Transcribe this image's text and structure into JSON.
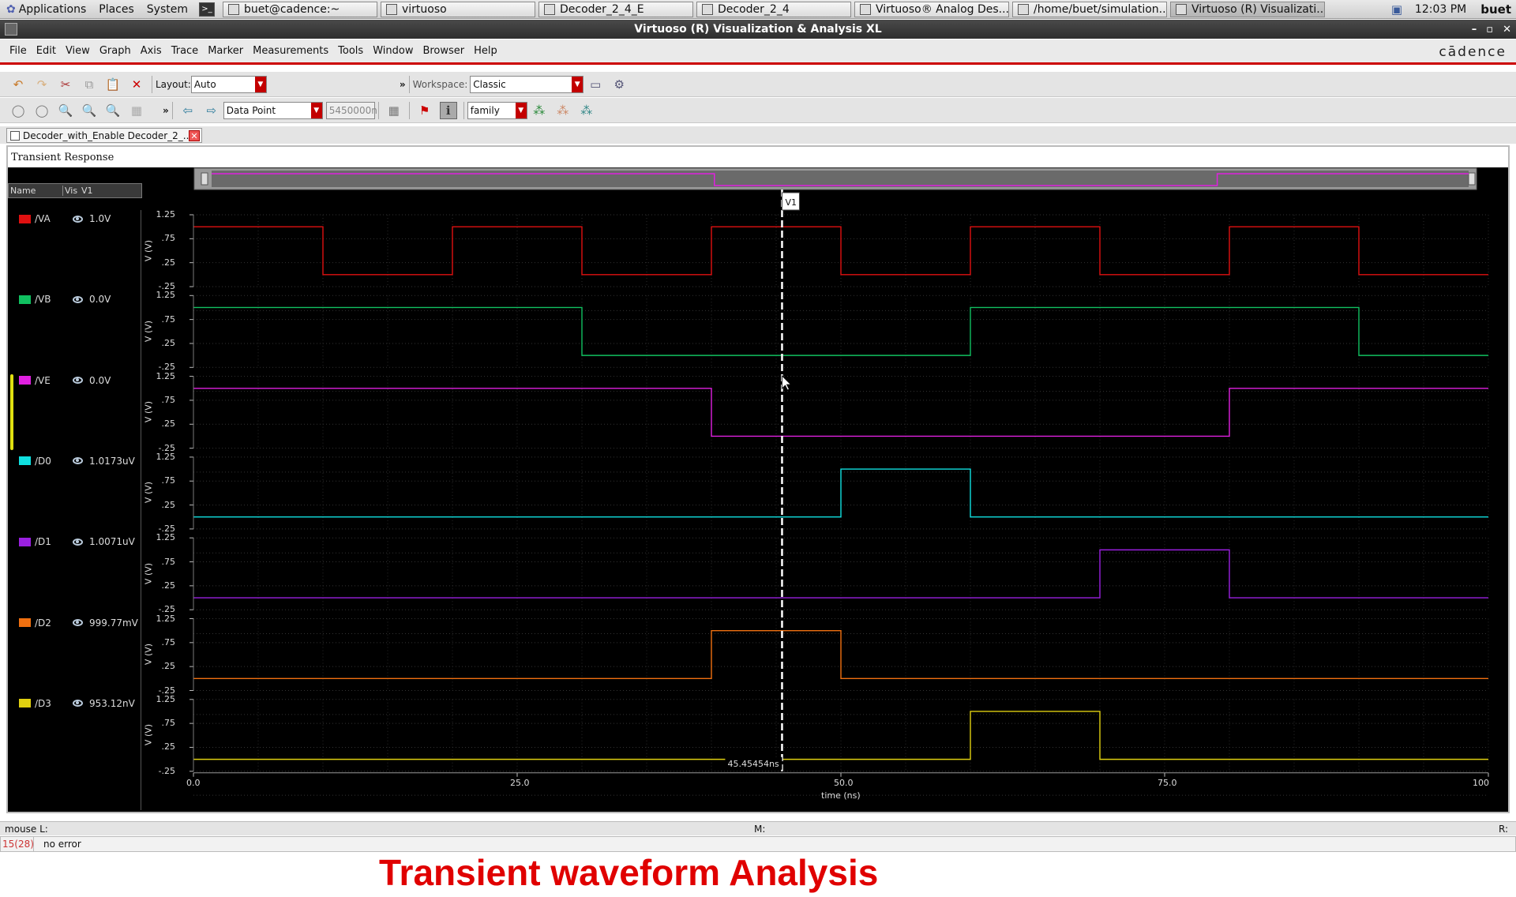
{
  "system_panel": {
    "menus": [
      "Applications",
      "Places",
      "System"
    ],
    "tasks": [
      {
        "label": "buet@cadence:~",
        "active": false
      },
      {
        "label": "virtuoso",
        "active": false
      },
      {
        "label": "Decoder_2_4_E",
        "active": false
      },
      {
        "label": "Decoder_2_4",
        "active": false
      },
      {
        "label": "Virtuoso® Analog Des...",
        "active": false
      },
      {
        "label": "/home/buet/simulation...",
        "active": false
      },
      {
        "label": "Virtuoso (R) Visualizati...",
        "active": true
      }
    ],
    "clock": "12:03 PM",
    "user": "buet"
  },
  "window": {
    "title": "Virtuoso (R) Visualization & Analysis XL",
    "controls": [
      "–",
      "▫",
      "✕"
    ]
  },
  "menubar": {
    "items": [
      "File",
      "Edit",
      "View",
      "Graph",
      "Axis",
      "Trace",
      "Marker",
      "Measurements",
      "Tools",
      "Window",
      "Browser",
      "Help"
    ],
    "brand": "cādence"
  },
  "toolbar1": {
    "layout_label": "Layout:",
    "layout_value": "Auto",
    "overflow": "»",
    "workspace_label": "Workspace:",
    "workspace_value": "Classic"
  },
  "toolbar2": {
    "overflow": "»",
    "mode_value": "Data Point",
    "point_value": "5450000n",
    "family_value": "family"
  },
  "tab": {
    "label": "Decoder_with_Enable Decoder_2_..."
  },
  "graph": {
    "title": "Transient Response",
    "legend_header": [
      "Name",
      "Vis",
      "V1"
    ],
    "marker_label": "V1",
    "marker_readout": "45.45454ns",
    "x_axis_label": "time (ns)",
    "x_ticks": [
      "0.0",
      "25.0",
      "50.0",
      "75.0",
      "100"
    ],
    "y_ticks": [
      "1.25",
      ".75",
      ".25",
      "-.25"
    ],
    "y_unit": "V (V)"
  },
  "chart_data": {
    "type": "line",
    "title": "Transient Response",
    "xlabel": "time (ns)",
    "ylabel": "V (V)",
    "xlim": [
      0,
      100
    ],
    "ylim": [
      -0.25,
      1.25
    ],
    "marker_x": 45.45454,
    "series": [
      {
        "name": "/VA",
        "color": "#e01010",
        "value_at_marker": "1.0V",
        "edges": [
          0,
          10,
          20,
          30,
          40,
          50,
          60,
          70,
          80,
          90,
          100
        ],
        "start": 1
      },
      {
        "name": "/VB",
        "color": "#10c060",
        "value_at_marker": "0.0V",
        "edges": [
          0,
          30,
          60,
          90,
          100
        ],
        "start": 1
      },
      {
        "name": "/VE",
        "color": "#e020e0",
        "value_at_marker": "0.0V",
        "edges": [
          0,
          40,
          80,
          100
        ],
        "start": 1
      },
      {
        "name": "/D0",
        "color": "#10e0e0",
        "value_at_marker": "1.0173uV",
        "edges": [
          0,
          50,
          60,
          100
        ],
        "start": 0
      },
      {
        "name": "/D1",
        "color": "#9a20e0",
        "value_at_marker": "1.0071uV",
        "edges": [
          0,
          70,
          80,
          100
        ],
        "start": 0
      },
      {
        "name": "/D2",
        "color": "#f07010",
        "value_at_marker": "999.77mV",
        "edges": [
          0,
          40,
          50,
          100
        ],
        "start": 0
      },
      {
        "name": "/D3",
        "color": "#e0d010",
        "value_at_marker": "953.12nV",
        "edges": [
          0,
          60,
          70,
          100
        ],
        "start": 0
      }
    ]
  },
  "status": {
    "mouse": "mouse L:",
    "mid": "M:",
    "right": "R:",
    "count": "15(28)",
    "message": "no error"
  },
  "caption": "Transient waveform Analysis"
}
